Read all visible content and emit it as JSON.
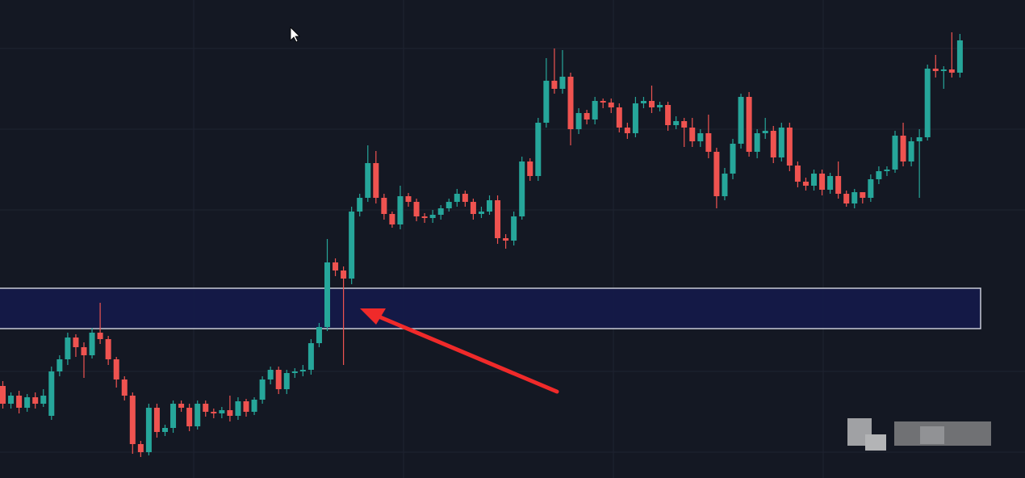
{
  "chart_data": {
    "type": "candlestick",
    "up_color": "#26a69a",
    "down_color": "#ef5350",
    "ylim": [
      0,
      592
    ],
    "open": [
      114,
      92,
      102,
      87,
      100,
      92,
      77,
      132,
      147,
      174,
      162,
      152,
      180,
      172,
      147,
      122,
      102,
      42,
      32,
      87,
      57,
      62,
      92,
      87,
      64,
      92,
      82,
      80,
      84,
      77,
      95,
      82,
      97,
      122,
      134,
      110,
      130,
      132,
      134,
      167,
      187,
      267,
      257,
      247,
      330,
      347,
      390,
      347,
      327,
      314,
      349,
      342,
      324,
      322,
      326,
      334,
      342,
      352,
      342,
      327,
      330,
      344,
      297,
      294,
      324,
      392,
      374,
      440,
      492,
      482,
      497,
      432,
      452,
      444,
      467,
      465,
      459,
      434,
      427,
      464,
      467,
      459,
      462,
      437,
      442,
      434,
      417,
      427,
      404,
      349,
      377,
      414,
      472,
      404,
      427,
      430,
      397,
      434,
      387,
      367,
      362,
      377,
      357,
      374,
      352,
      340,
      354,
      347,
      370,
      380,
      382,
      424,
      392,
      417,
      422,
      507,
      504,
      506,
      502
    ],
    "high": [
      120,
      106,
      108,
      104,
      106,
      110,
      138,
      152,
      180,
      178,
      168,
      186,
      217,
      176,
      150,
      126,
      106,
      46,
      92,
      92,
      66,
      96,
      96,
      92,
      96,
      96,
      86,
      88,
      102,
      100,
      98,
      100,
      126,
      138,
      138,
      134,
      136,
      140,
      172,
      192,
      296,
      272,
      262,
      336,
      352,
      412,
      405,
      352,
      330,
      362,
      353,
      346,
      328,
      332,
      338,
      346,
      358,
      356,
      346,
      336,
      350,
      350,
      302,
      330,
      398,
      396,
      446,
      520,
      532,
      530,
      502,
      458,
      456,
      472,
      470,
      470,
      464,
      440,
      472,
      472,
      486,
      466,
      466,
      448,
      446,
      446,
      432,
      450,
      409,
      384,
      420,
      476,
      478,
      432,
      446,
      436,
      440,
      440,
      392,
      372,
      382,
      382,
      378,
      392,
      356,
      358,
      352,
      376,
      386,
      386,
      430,
      440,
      422,
      432,
      512,
      524,
      510,
      552,
      550
    ],
    "low": [
      86,
      86,
      80,
      82,
      86,
      88,
      72,
      126,
      140,
      150,
      124,
      148,
      166,
      140,
      112,
      96,
      30,
      26,
      28,
      50,
      52,
      56,
      82,
      58,
      60,
      76,
      74,
      74,
      70,
      72,
      76,
      78,
      92,
      116,
      104,
      104,
      124,
      126,
      128,
      162,
      182,
      250,
      140,
      240,
      324,
      342,
      340,
      320,
      310,
      308,
      336,
      318,
      316,
      316,
      320,
      330,
      336,
      336,
      320,
      322,
      326,
      290,
      284,
      288,
      320,
      368,
      368,
      434,
      476,
      476,
      412,
      426,
      438,
      438,
      458,
      452,
      428,
      420,
      422,
      458,
      452,
      454,
      430,
      432,
      410,
      410,
      410,
      396,
      334,
      344,
      370,
      408,
      398,
      396,
      420,
      390,
      392,
      380,
      360,
      356,
      356,
      350,
      352,
      346,
      336,
      334,
      340,
      342,
      364,
      374,
      378,
      386,
      386,
      347,
      418,
      496,
      482,
      496,
      496
    ],
    "close": [
      92,
      102,
      87,
      100,
      92,
      102,
      132,
      147,
      174,
      162,
      152,
      180,
      172,
      147,
      122,
      102,
      42,
      32,
      87,
      57,
      62,
      92,
      87,
      64,
      92,
      82,
      80,
      84,
      77,
      95,
      82,
      97,
      122,
      134,
      110,
      130,
      132,
      134,
      167,
      187,
      267,
      257,
      247,
      330,
      347,
      390,
      347,
      327,
      314,
      349,
      342,
      324,
      322,
      326,
      334,
      342,
      352,
      342,
      327,
      330,
      344,
      297,
      294,
      324,
      392,
      374,
      440,
      492,
      482,
      497,
      432,
      452,
      444,
      467,
      465,
      459,
      434,
      427,
      464,
      467,
      459,
      462,
      437,
      442,
      434,
      417,
      427,
      404,
      349,
      377,
      414,
      472,
      404,
      427,
      430,
      397,
      434,
      387,
      367,
      362,
      377,
      357,
      374,
      352,
      340,
      354,
      347,
      370,
      380,
      382,
      424,
      392,
      417,
      422,
      507,
      504,
      506,
      502,
      542
    ],
    "zone": {
      "low": 185,
      "high": 235,
      "color": "#141a4a"
    }
  }
}
